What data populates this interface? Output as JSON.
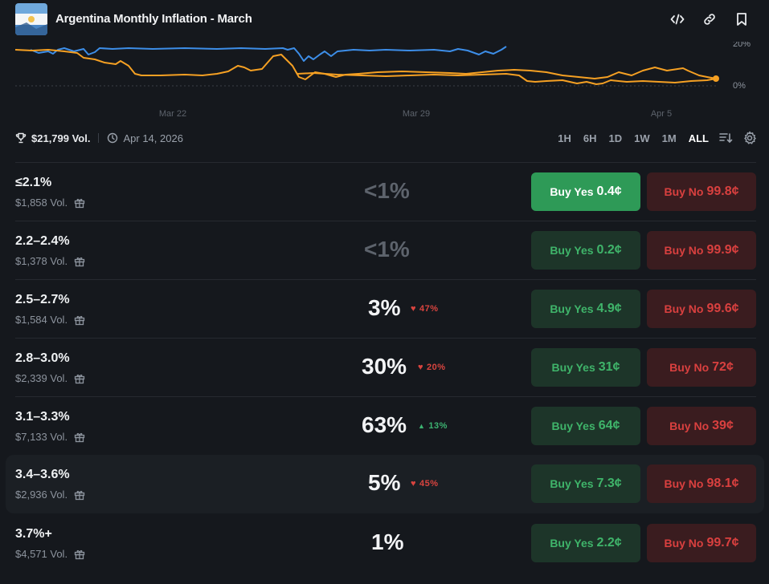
{
  "header": {
    "title": "Argentina Monthly Inflation - March",
    "icons": [
      "embed-icon",
      "link-icon",
      "bookmark-icon"
    ]
  },
  "chart": {
    "x_ticks": [
      "Mar 22",
      "Mar 29",
      "Apr 5"
    ],
    "y_ticks": [
      "20%",
      "0%"
    ],
    "series_colors": {
      "blue": "#3d8ee8",
      "orange": "#f5a023"
    }
  },
  "stats": {
    "volume": "$21,799 Vol.",
    "end_date": "Apr 14, 2026"
  },
  "ranges": [
    "1H",
    "6H",
    "1D",
    "1W",
    "1M",
    "ALL"
  ],
  "active_range": "ALL",
  "outcomes": [
    {
      "label": "≤2.1%",
      "volume": "$1,858 Vol.",
      "percent": "<1%",
      "change": "",
      "change_dir": "",
      "yes_label": "Buy Yes",
      "yes_price": "0.4¢",
      "no_label": "Buy No",
      "no_price": "99.8¢"
    },
    {
      "label": "2.2–2.4%",
      "volume": "$1,378 Vol.",
      "percent": "<1%",
      "change": "",
      "change_dir": "",
      "yes_label": "Buy Yes",
      "yes_price": "0.2¢",
      "no_label": "Buy No",
      "no_price": "99.9¢"
    },
    {
      "label": "2.5–2.7%",
      "volume": "$1,584 Vol.",
      "percent": "3%",
      "change": "47%",
      "change_dir": "down",
      "yes_label": "Buy Yes",
      "yes_price": "4.9¢",
      "no_label": "Buy No",
      "no_price": "99.6¢"
    },
    {
      "label": "2.8–3.0%",
      "volume": "$2,339 Vol.",
      "percent": "30%",
      "change": "20%",
      "change_dir": "down",
      "yes_label": "Buy Yes",
      "yes_price": "31¢",
      "no_label": "Buy No",
      "no_price": "72¢"
    },
    {
      "label": "3.1–3.3%",
      "volume": "$7,133 Vol.",
      "percent": "63%",
      "change": "13%",
      "change_dir": "up",
      "yes_label": "Buy Yes",
      "yes_price": "64¢",
      "no_label": "Buy No",
      "no_price": "39¢"
    },
    {
      "label": "3.4–3.6%",
      "volume": "$2,936 Vol.",
      "percent": "5%",
      "change": "45%",
      "change_dir": "down",
      "yes_label": "Buy Yes",
      "yes_price": "7.3¢",
      "no_label": "Buy No",
      "no_price": "98.1¢"
    },
    {
      "label": "3.7%+",
      "volume": "$4,571 Vol.",
      "percent": "1%",
      "change": "",
      "change_dir": "",
      "yes_label": "Buy Yes",
      "yes_price": "2.2¢",
      "no_label": "Buy No",
      "no_price": "99.7¢"
    }
  ]
}
